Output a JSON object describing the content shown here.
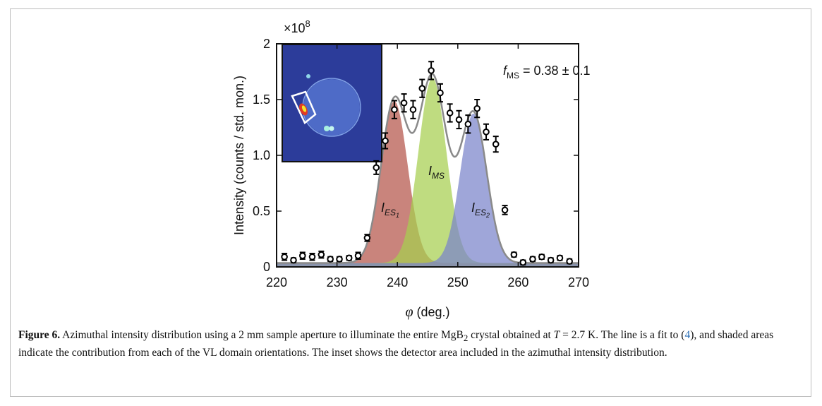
{
  "chart_data": {
    "type": "scatter",
    "ylabel": "Intensity (counts / std. mon.)",
    "xlabel_symbol": "φ",
    "xlabel_unit": "(deg.)",
    "yscale": {
      "base": "×10",
      "exponent": "8"
    },
    "xlim": [
      220,
      270
    ],
    "ylim": [
      0,
      2
    ],
    "xticks": [
      220,
      230,
      240,
      250,
      260,
      270
    ],
    "yticks": [
      0,
      0.5,
      {
        "value": 1,
        "label": "1.0"
      },
      1.5,
      2
    ],
    "x": [
      221.3,
      222.8,
      224.3,
      225.9,
      227.4,
      228.9,
      230.4,
      232.0,
      233.5,
      235.0,
      236.5,
      238.0,
      239.5,
      241.1,
      242.6,
      244.1,
      245.6,
      247.1,
      248.7,
      250.2,
      251.7,
      253.2,
      254.7,
      256.3,
      257.8,
      259.3,
      260.8,
      262.4,
      263.9,
      265.4,
      266.9,
      268.5
    ],
    "values": [
      0.09,
      0.06,
      0.1,
      0.09,
      0.11,
      0.07,
      0.07,
      0.08,
      0.1,
      0.26,
      0.89,
      1.13,
      1.41,
      1.47,
      1.41,
      1.6,
      1.76,
      1.56,
      1.38,
      1.32,
      1.28,
      1.42,
      1.21,
      1.1,
      0.51,
      0.11,
      0.04,
      0.07,
      0.09,
      0.06,
      0.08,
      0.05
    ],
    "errors": [
      0.03,
      0.02,
      0.03,
      0.03,
      0.03,
      0.02,
      0.02,
      0.02,
      0.03,
      0.03,
      0.06,
      0.07,
      0.08,
      0.08,
      0.08,
      0.08,
      0.08,
      0.08,
      0.08,
      0.08,
      0.08,
      0.08,
      0.07,
      0.07,
      0.04,
      0.02,
      0.02,
      0.02,
      0.02,
      0.02,
      0.02,
      0.02
    ],
    "point_color": "#000000",
    "fit_color": "#8a8a8a",
    "baseline": 0.035,
    "components": [
      {
        "symbol": "I",
        "subscript": "ES",
        "subsubscript": "1",
        "color": "#b4544a",
        "center": 239.5,
        "amplitude": 1.45,
        "width": 2.2
      },
      {
        "symbol": "I",
        "subscript": "MS",
        "color": "#a6cf4f",
        "center": 245.8,
        "amplitude": 1.66,
        "width": 2.3
      },
      {
        "symbol": "I",
        "subscript": "ES",
        "subsubscript": "2",
        "color": "#7a84cb",
        "center": 252.6,
        "amplitude": 1.34,
        "width": 2.2
      }
    ],
    "annotation": {
      "symbol": "f",
      "subscript": "MS",
      "text": " = 0.38 ± 0.1"
    }
  },
  "caption": {
    "label": "Figure 6.",
    "text1": " Azimuthal intensity distribution using a 2 mm sample aperture to illuminate the entire MgB",
    "sub": "2",
    "text2": " crystal obtained at ",
    "var": "T",
    "text3": " = 2.7 K. The line is a fit to (",
    "ref": "4",
    "text4": "), and shaded areas indicate the contribution from each of the VL domain orientations. The inset shows the detector area included in the azimuthal intensity distribution."
  }
}
